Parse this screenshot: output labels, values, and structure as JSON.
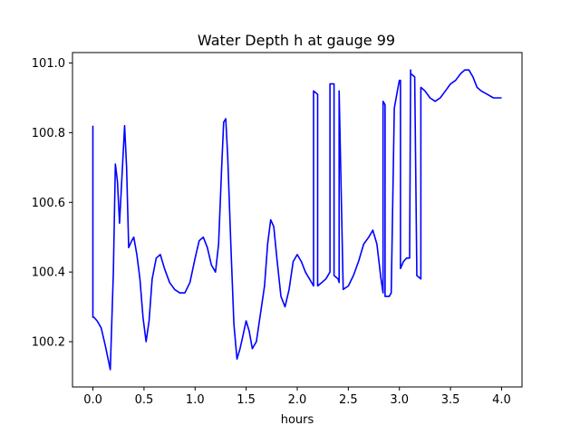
{
  "chart_data": {
    "type": "line",
    "title": "Water Depth h at gauge 99",
    "xlabel": "hours",
    "ylabel": "",
    "xlim": [
      -0.2,
      4.2
    ],
    "ylim": [
      100.07,
      101.03
    ],
    "xticks": [
      0.0,
      0.5,
      1.0,
      1.5,
      2.0,
      2.5,
      3.0,
      3.5,
      4.0
    ],
    "xtick_labels": [
      "0.0",
      "0.5",
      "1.0",
      "1.5",
      "2.0",
      "2.5",
      "3.0",
      "3.5",
      "4.0"
    ],
    "yticks": [
      100.2,
      100.4,
      100.6,
      100.8,
      101.0
    ],
    "ytick_labels": [
      "100.2",
      "100.4",
      "100.6",
      "100.8",
      "101.0"
    ],
    "grid": false,
    "series": [
      {
        "name": "",
        "color": "#0000ff",
        "x": [
          0.0,
          0.0,
          0.01,
          0.04,
          0.08,
          0.12,
          0.17,
          0.2,
          0.22,
          0.24,
          0.26,
          0.28,
          0.31,
          0.33,
          0.35,
          0.38,
          0.4,
          0.43,
          0.46,
          0.49,
          0.52,
          0.55,
          0.58,
          0.62,
          0.66,
          0.7,
          0.75,
          0.8,
          0.85,
          0.9,
          0.95,
          1.0,
          1.04,
          1.08,
          1.12,
          1.16,
          1.2,
          1.23,
          1.26,
          1.28,
          1.3,
          1.32,
          1.35,
          1.38,
          1.41,
          1.44,
          1.47,
          1.5,
          1.53,
          1.56,
          1.6,
          1.64,
          1.68,
          1.71,
          1.74,
          1.77,
          1.8,
          1.84,
          1.88,
          1.92,
          1.96,
          2.0,
          2.04,
          2.08,
          2.12,
          2.16,
          2.16,
          2.2,
          2.2,
          2.24,
          2.28,
          2.32,
          2.32,
          2.36,
          2.36,
          2.4,
          2.41,
          2.41,
          2.45,
          2.5,
          2.55,
          2.6,
          2.65,
          2.7,
          2.74,
          2.78,
          2.82,
          2.84,
          2.84,
          2.86,
          2.86,
          2.9,
          2.92,
          2.95,
          2.98,
          3.0,
          3.01,
          3.01,
          3.04,
          3.07,
          3.1,
          3.11,
          3.11,
          3.15,
          3.17,
          3.17,
          3.21,
          3.21,
          3.25,
          3.3,
          3.35,
          3.4,
          3.45,
          3.5,
          3.55,
          3.6,
          3.64,
          3.68,
          3.72,
          3.76,
          3.8,
          3.86,
          3.92,
          3.98,
          4.0
        ],
        "y": [
          100.82,
          100.27,
          100.27,
          100.26,
          100.24,
          100.19,
          100.12,
          100.4,
          100.71,
          100.66,
          100.54,
          100.65,
          100.82,
          100.7,
          100.47,
          100.49,
          100.5,
          100.45,
          100.38,
          100.27,
          100.2,
          100.26,
          100.38,
          100.44,
          100.45,
          100.41,
          100.37,
          100.35,
          100.34,
          100.34,
          100.37,
          100.44,
          100.49,
          100.5,
          100.47,
          100.42,
          100.4,
          100.48,
          100.7,
          100.83,
          100.84,
          100.73,
          100.48,
          100.25,
          100.15,
          100.18,
          100.22,
          100.26,
          100.23,
          100.18,
          100.2,
          100.28,
          100.36,
          100.48,
          100.55,
          100.53,
          100.44,
          100.33,
          100.3,
          100.35,
          100.43,
          100.45,
          100.43,
          100.4,
          100.38,
          100.36,
          100.92,
          100.91,
          100.36,
          100.37,
          100.38,
          100.4,
          100.94,
          100.94,
          100.39,
          100.38,
          100.37,
          100.92,
          100.35,
          100.36,
          100.39,
          100.43,
          100.48,
          100.5,
          100.52,
          100.48,
          100.38,
          100.34,
          100.89,
          100.88,
          100.33,
          100.33,
          100.34,
          100.87,
          100.92,
          100.95,
          100.95,
          100.41,
          100.43,
          100.44,
          100.44,
          100.98,
          100.97,
          100.96,
          100.41,
          100.39,
          100.38,
          100.93,
          100.92,
          100.9,
          100.89,
          100.9,
          100.92,
          100.94,
          100.95,
          100.97,
          100.98,
          100.98,
          100.96,
          100.93,
          100.92,
          100.91,
          100.9,
          100.9,
          100.9
        ]
      }
    ]
  }
}
